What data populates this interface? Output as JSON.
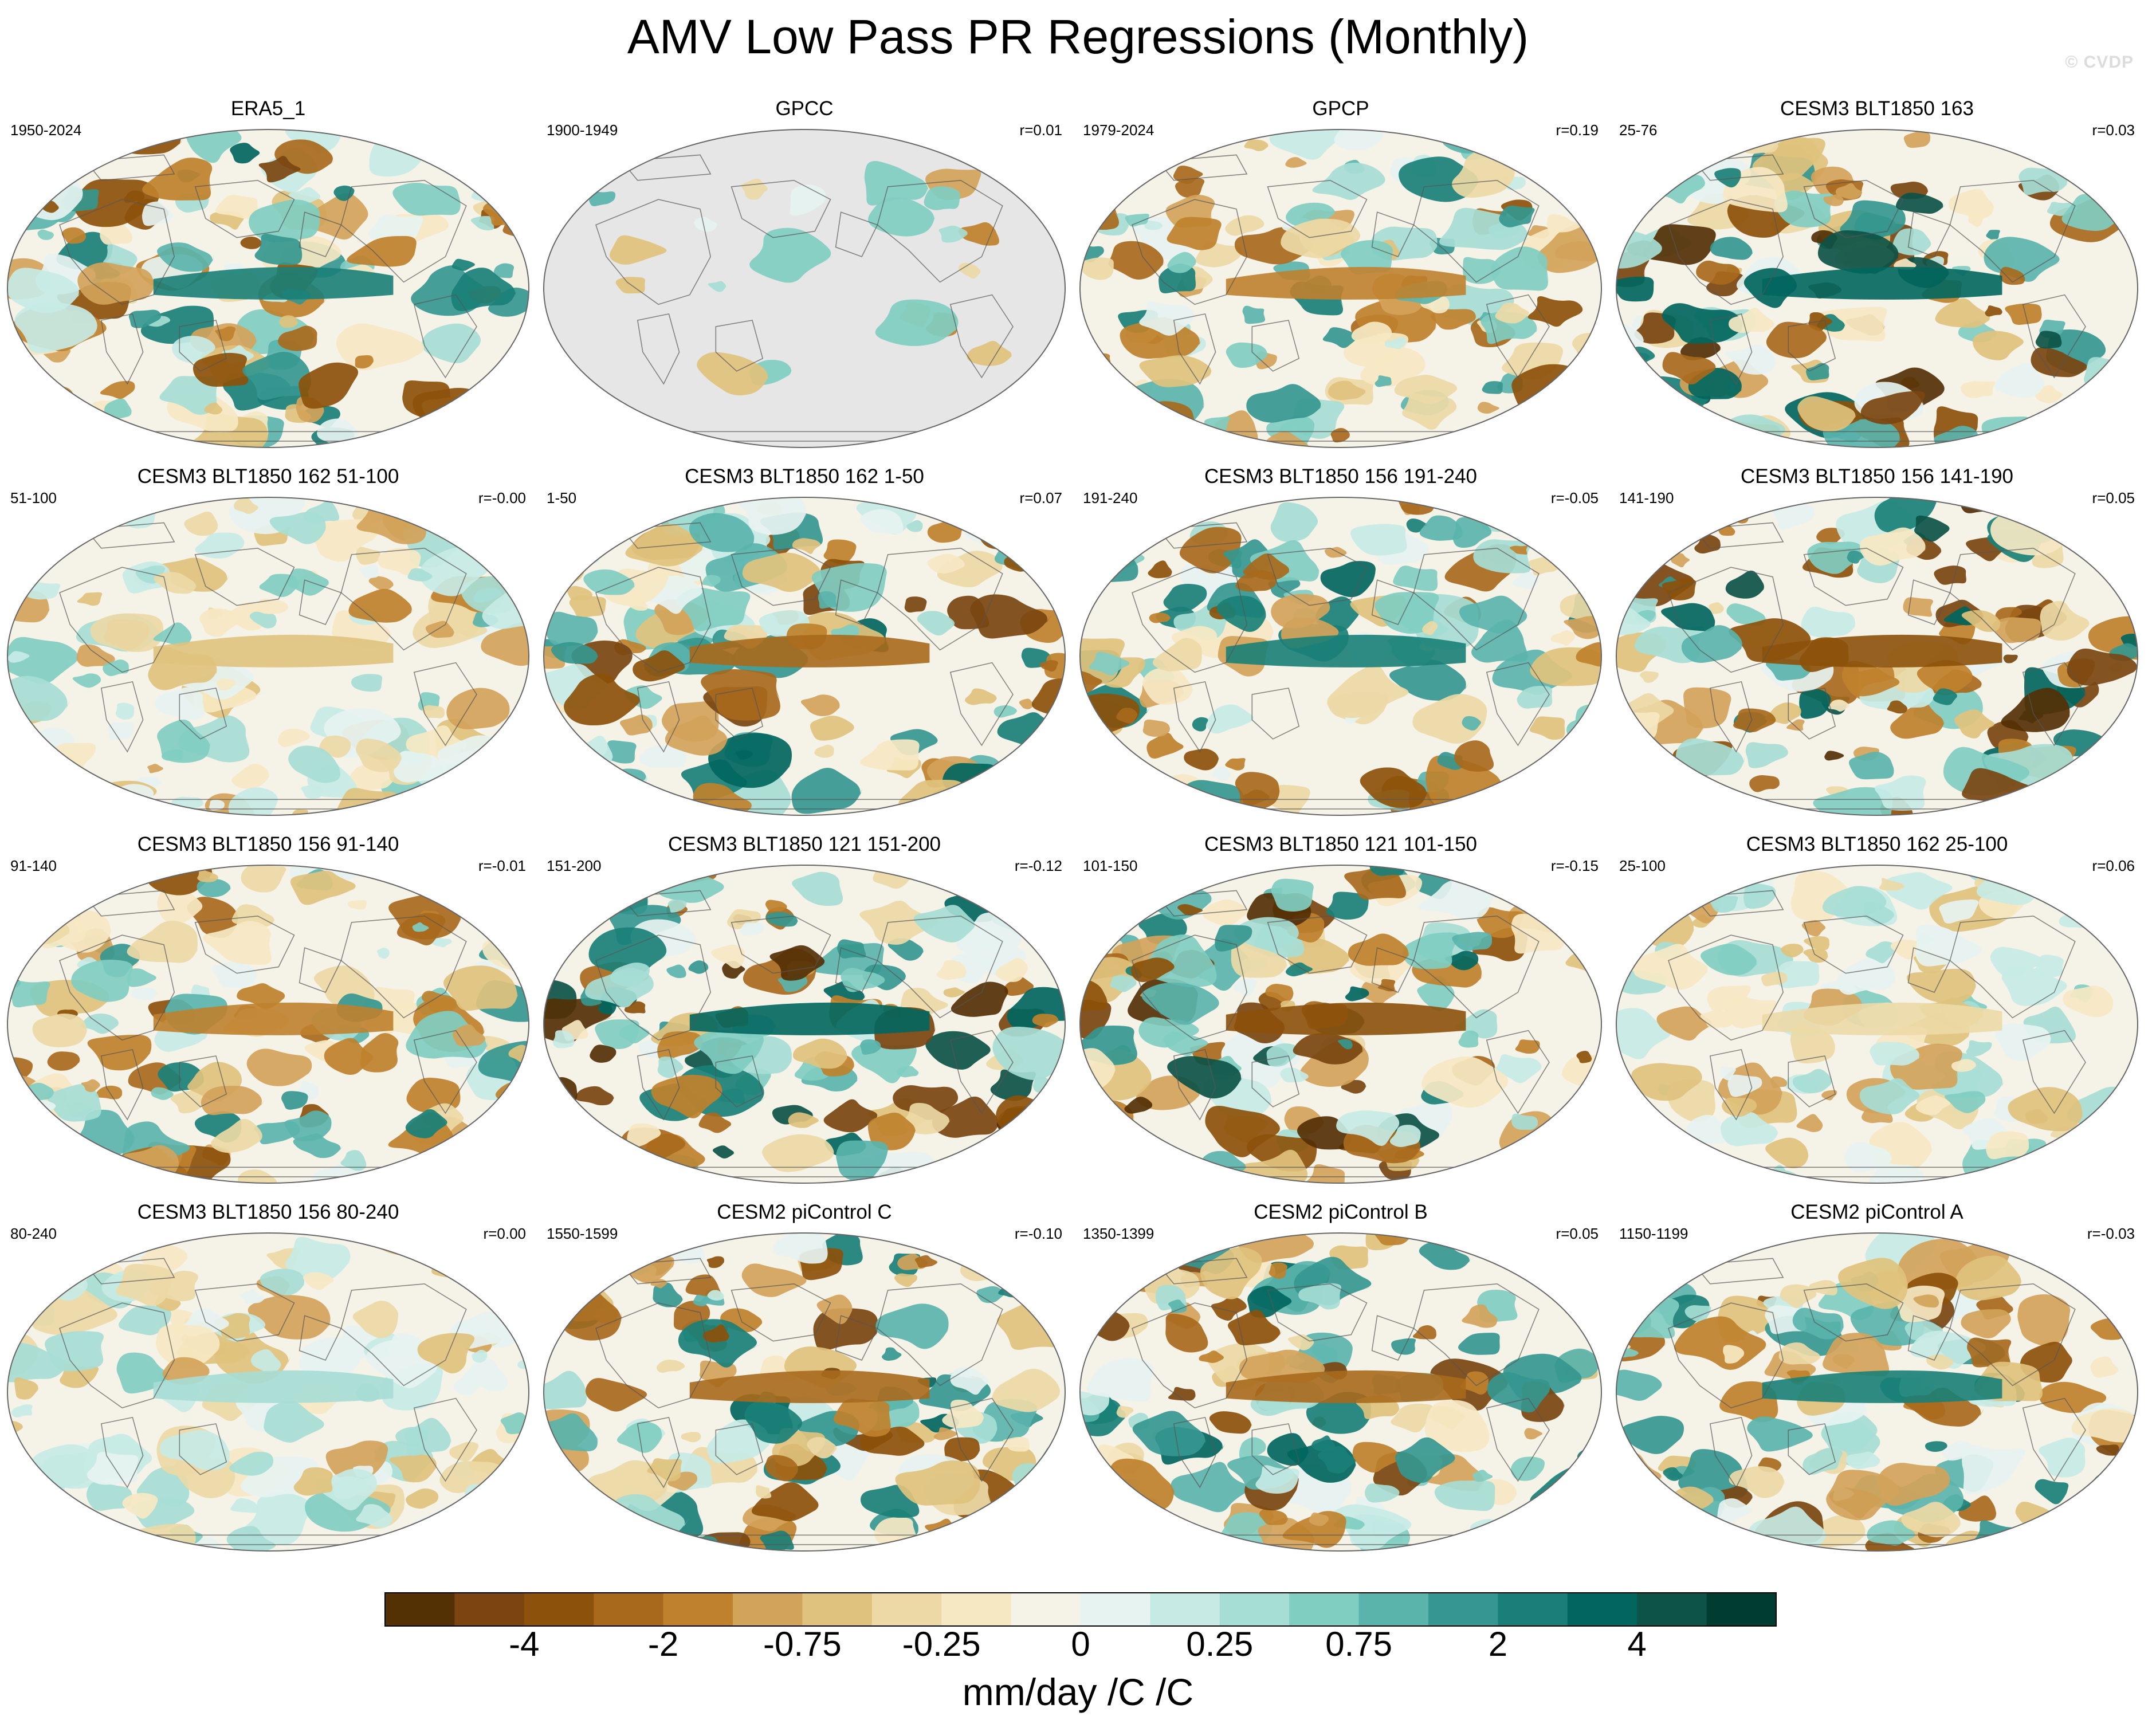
{
  "title": "AMV Low Pass PR Regressions (Monthly)",
  "watermark": "© CVDP",
  "chart_data": {
    "type": "heatmap",
    "projection": "robinson-global-map",
    "variable": "PR regression on AMV (low pass)",
    "panels": [
      {
        "title": "ERA5_1",
        "period": "1950-2024",
        "r": "",
        "intensity": 0.8,
        "land_only": false
      },
      {
        "title": "GPCC",
        "period": "1900-1949",
        "r": "r=0.01",
        "intensity": 0.6,
        "land_only": true
      },
      {
        "title": "GPCP",
        "period": "1979-2024",
        "r": "r=0.19",
        "intensity": 0.7,
        "land_only": false
      },
      {
        "title": "CESM3 BLT1850 163",
        "period": "25-76",
        "r": "r=0.03",
        "intensity": 1.0,
        "land_only": false
      },
      {
        "title": "CESM3 BLT1850 162 51-100",
        "period": "51-100",
        "r": "r=-0.00",
        "intensity": 0.45,
        "land_only": false
      },
      {
        "title": "CESM3 BLT1850 162 1-50",
        "period": "1-50",
        "r": "r=0.07",
        "intensity": 0.85,
        "land_only": false
      },
      {
        "title": "CESM3 BLT1850 156 191-240",
        "period": "191-240",
        "r": "r=-0.05",
        "intensity": 0.8,
        "land_only": false
      },
      {
        "title": "CESM3 BLT1850 156 141-190",
        "period": "141-190",
        "r": "r=0.05",
        "intensity": 0.95,
        "land_only": false
      },
      {
        "title": "CESM3 BLT1850 156 91-140",
        "period": "91-140",
        "r": "r=-0.01",
        "intensity": 0.7,
        "land_only": false
      },
      {
        "title": "CESM3 BLT1850 121 151-200",
        "period": "151-200",
        "r": "r=-0.12",
        "intensity": 1.0,
        "land_only": false
      },
      {
        "title": "CESM3 BLT1850 121 101-150",
        "period": "101-150",
        "r": "r=-0.15",
        "intensity": 0.95,
        "land_only": false
      },
      {
        "title": "CESM3 BLT1850 162 25-100",
        "period": "25-100",
        "r": "r=0.06",
        "intensity": 0.4,
        "land_only": false
      },
      {
        "title": "CESM3 BLT1850 156 80-240",
        "period": "80-240",
        "r": "r=0.00",
        "intensity": 0.35,
        "land_only": false
      },
      {
        "title": "CESM2 piControl C",
        "period": "1550-1599",
        "r": "r=-0.10",
        "intensity": 0.85,
        "land_only": false
      },
      {
        "title": "CESM2 piControl B",
        "period": "1350-1399",
        "r": "r=0.05",
        "intensity": 0.9,
        "land_only": false
      },
      {
        "title": "CESM2 piControl A",
        "period": "1150-1199",
        "r": "r=-0.03",
        "intensity": 0.85,
        "land_only": false
      }
    ],
    "colorbar": {
      "colors": [
        "#543005",
        "#7a4510",
        "#8c510a",
        "#a8691c",
        "#bf812d",
        "#d2a35a",
        "#dfc27d",
        "#ecd9a6",
        "#f6e8c3",
        "#f5f2e8",
        "#e6f3f1",
        "#c7eae5",
        "#a6ddd5",
        "#80cdc1",
        "#5ab4ac",
        "#35978f",
        "#1a8077",
        "#01665e",
        "#0d5347",
        "#003c30"
      ],
      "tick_labels": [
        "-4",
        "-2",
        "-0.75",
        "-0.25",
        "0",
        "0.25",
        "0.75",
        "2",
        "4"
      ],
      "tick_boundaries": [
        2,
        4,
        6,
        8,
        10,
        12,
        14,
        16,
        18
      ],
      "units": "mm/day /C /C"
    }
  }
}
